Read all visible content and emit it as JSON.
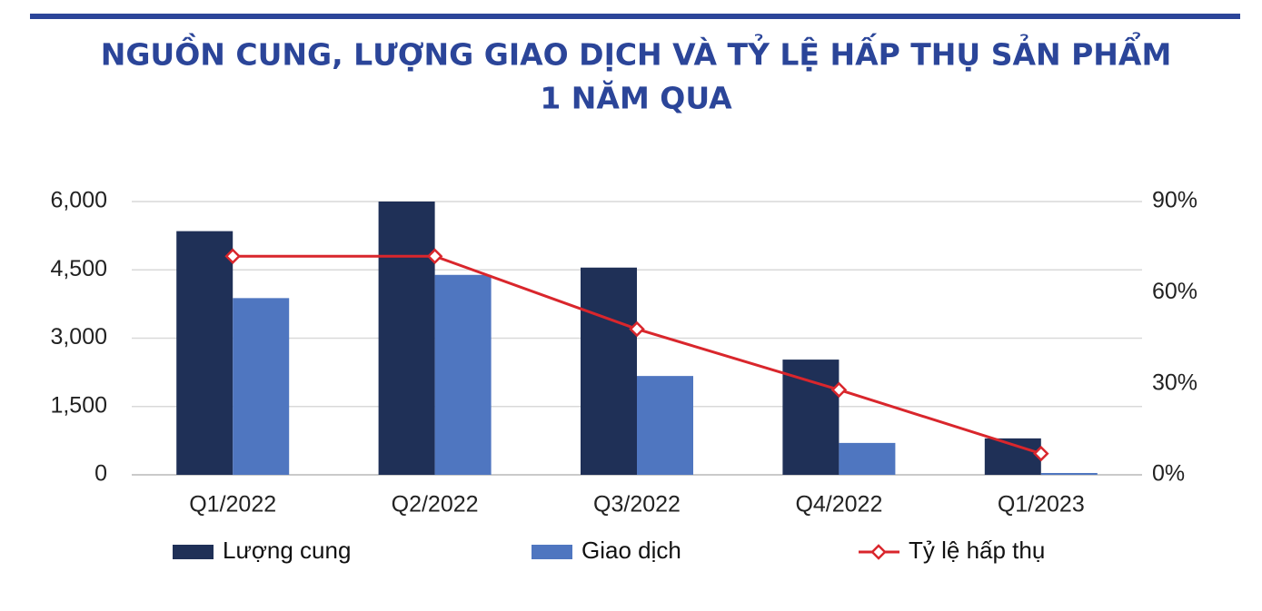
{
  "chart_data": {
    "type": "bar",
    "title": [
      "NGUỒN CUNG, LƯỢNG GIAO DỊCH VÀ TỶ LỆ HẤP THỤ SẢN PHẨM",
      "1 NĂM QUA"
    ],
    "categories": [
      "Q1/2022",
      "Q2/2022",
      "Q3/2022",
      "Q4/2022",
      "Q1/2023"
    ],
    "series": [
      {
        "name": "Lượng cung",
        "type": "bar",
        "color": "#1f3057",
        "values": [
          5350,
          6000,
          4550,
          2530,
          800
        ]
      },
      {
        "name": "Giao dịch",
        "type": "bar",
        "color": "#4f76c0",
        "values": [
          3880,
          4390,
          2170,
          700,
          40
        ]
      },
      {
        "name": "Tỷ lệ hấp thụ",
        "type": "line",
        "axis": "y2",
        "color": "#d9262c",
        "values": [
          72,
          72,
          48,
          28,
          7
        ]
      }
    ],
    "ylim": [
      0,
      6000
    ],
    "yticks": [
      0,
      {
        "value": 1500,
        "label": "1,500"
      },
      {
        "value": 3000,
        "label": "3,000"
      },
      {
        "value": 4500,
        "label": "4,500"
      },
      {
        "value": 6000,
        "label": "6,000"
      }
    ],
    "y2lim": [
      0,
      90
    ],
    "y2ticks": [
      {
        "value": 0,
        "label": "0%"
      },
      {
        "value": 30,
        "label": "30%"
      },
      {
        "value": 60,
        "label": "60%"
      },
      {
        "value": 90,
        "label": "90%"
      }
    ],
    "grid": true,
    "legend": "bottom"
  }
}
